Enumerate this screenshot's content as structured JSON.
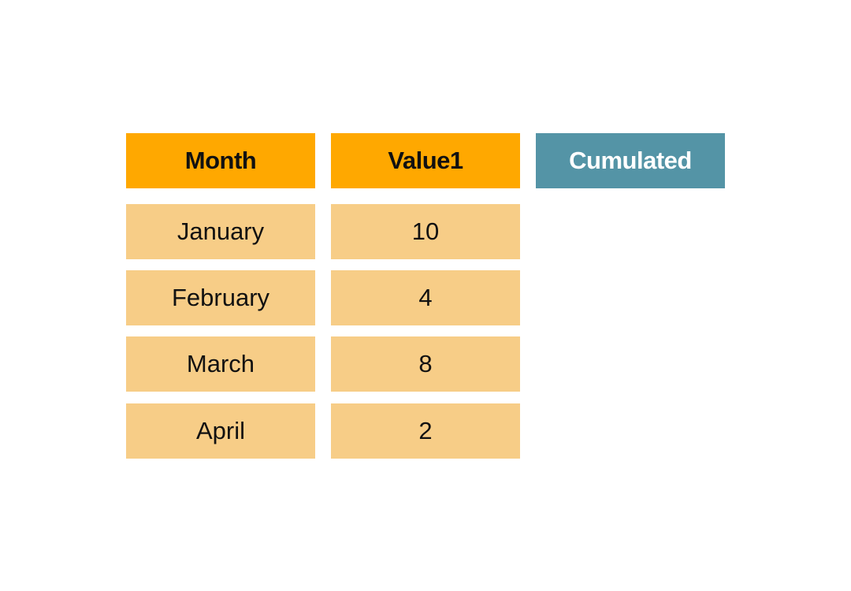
{
  "colors": {
    "header_primary": "#FFA800",
    "header_cumulated": "#5494A6",
    "body_cell": "#F7CD87",
    "header_cumulated_text": "#FFFFFF",
    "text": "#111111"
  },
  "table": {
    "headers": {
      "month": "Month",
      "value": "Value1",
      "cumulated": "Cumulated"
    },
    "rows": [
      {
        "month": "January",
        "value": "10"
      },
      {
        "month": "February",
        "value": "4"
      },
      {
        "month": "March",
        "value": "8"
      },
      {
        "month": "April",
        "value": "2"
      }
    ]
  }
}
